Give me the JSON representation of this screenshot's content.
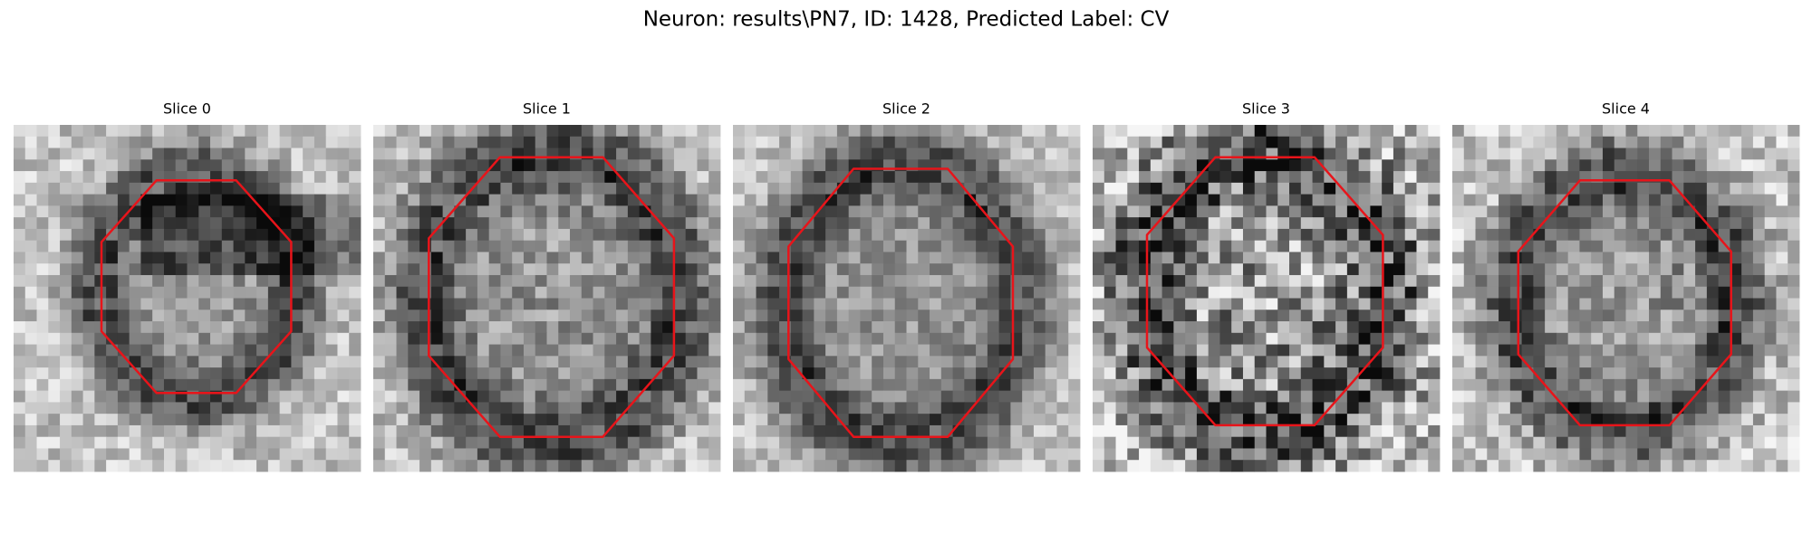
{
  "title": "Neuron: results\\PN7, ID: 1428, Predicted Label: CV",
  "panels": [
    {
      "title": "Slice 0"
    },
    {
      "title": "Slice 1"
    },
    {
      "title": "Slice 2"
    },
    {
      "title": "Slice 3"
    },
    {
      "title": "Slice 4"
    }
  ]
}
